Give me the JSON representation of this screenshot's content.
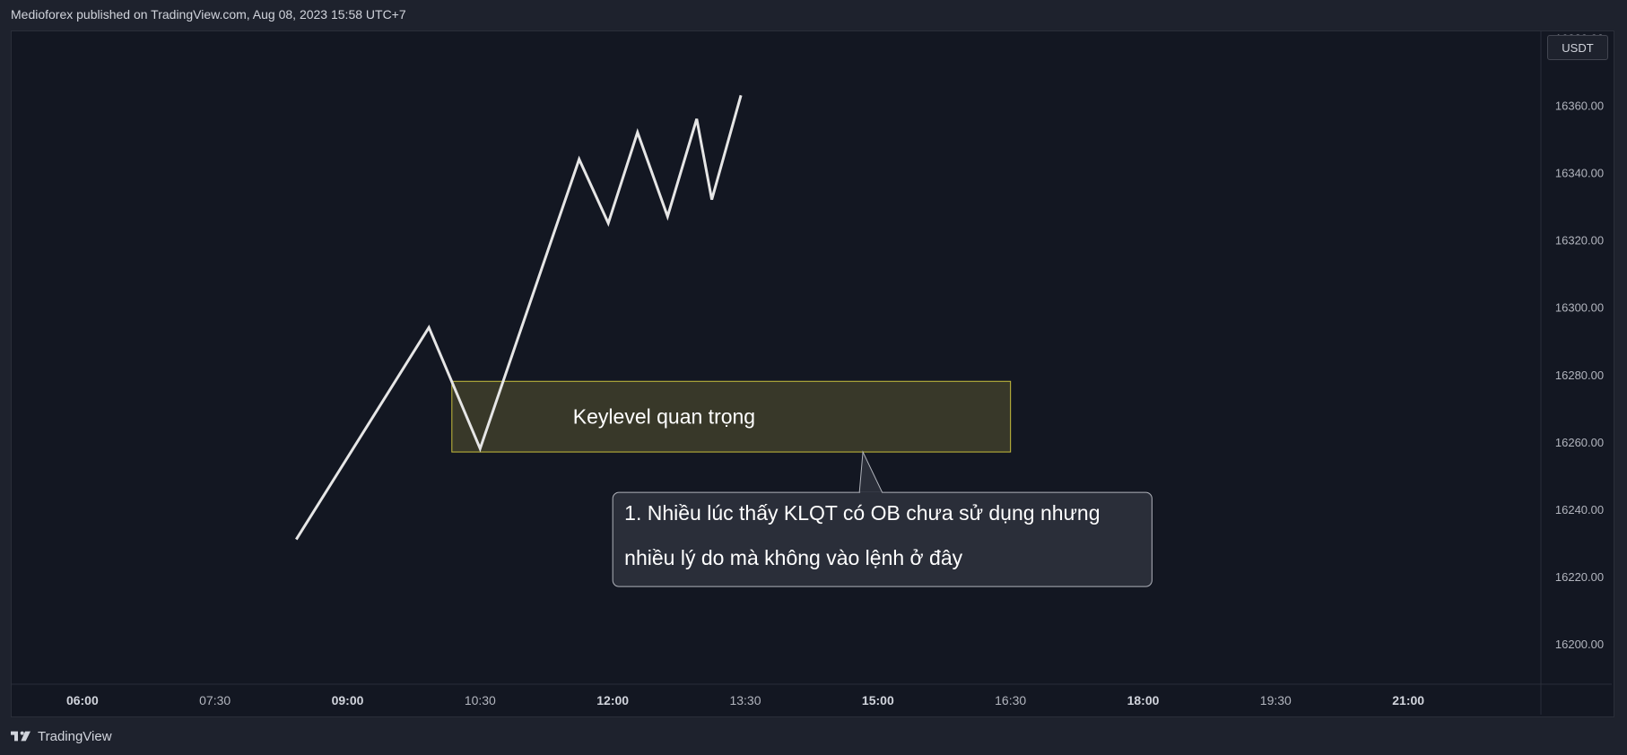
{
  "header": {
    "publish_line": "Medioforex published on TradingView.com, Aug 08, 2023 15:58 UTC+7"
  },
  "price_scale": {
    "currency": "USDT"
  },
  "footer": {
    "brand": "TradingView",
    "logo_icon": "tradingview-logo-icon"
  },
  "colors": {
    "background": "#131722",
    "line": "#e6e6e6",
    "zone_fill": "#3a3a2a",
    "zone_border": "#c8bf3c",
    "callout_fill": "#2a2e39",
    "callout_border": "#b0b3bb",
    "axis_text": "#b2b5be"
  },
  "chart_data": {
    "type": "line",
    "x_ticks": [
      {
        "label": "06:00",
        "bold": true
      },
      {
        "label": "07:30",
        "bold": false
      },
      {
        "label": "09:00",
        "bold": true
      },
      {
        "label": "10:30",
        "bold": false
      },
      {
        "label": "12:00",
        "bold": true
      },
      {
        "label": "13:30",
        "bold": false
      },
      {
        "label": "15:00",
        "bold": true
      },
      {
        "label": "16:30",
        "bold": false
      },
      {
        "label": "18:00",
        "bold": true
      },
      {
        "label": "19:30",
        "bold": false
      },
      {
        "label": "21:00",
        "bold": true
      }
    ],
    "y_ticks": [
      "16200.00",
      "16220.00",
      "16240.00",
      "16260.00",
      "16280.00",
      "16300.00",
      "16320.00",
      "16340.00",
      "16360.00",
      "16380.00"
    ],
    "ylim": [
      16188,
      16382
    ],
    "xlim_hours": [
      5.2,
      22.5
    ],
    "series": [
      {
        "points": [
          {
            "x": 8.42,
            "y": 16231
          },
          {
            "x": 9.92,
            "y": 16294
          },
          {
            "x": 10.5,
            "y": 16258
          },
          {
            "x": 11.62,
            "y": 16344
          },
          {
            "x": 11.95,
            "y": 16325
          },
          {
            "x": 12.28,
            "y": 16352
          },
          {
            "x": 12.62,
            "y": 16327
          },
          {
            "x": 12.95,
            "y": 16356
          },
          {
            "x": 13.12,
            "y": 16332
          },
          {
            "x": 13.45,
            "y": 16363
          }
        ]
      }
    ],
    "annotations": [
      {
        "kind": "zone",
        "text": "Keylevel quan trọng",
        "x_start": 10.18,
        "x_end": 16.5,
        "y_top": 16278,
        "y_bottom": 16257
      },
      {
        "kind": "callout",
        "lines": [
          "1. Nhiều lúc thấy KLQT có OB chưa sử dụng nhưng",
          "nhiều lý do mà không vào lệnh ở đây"
        ],
        "pointer_x": 14.83,
        "pointer_y": 16257,
        "x_start": 12.0,
        "x_end": 18.1,
        "y_top": 16245,
        "y_bottom": 16217
      }
    ]
  }
}
